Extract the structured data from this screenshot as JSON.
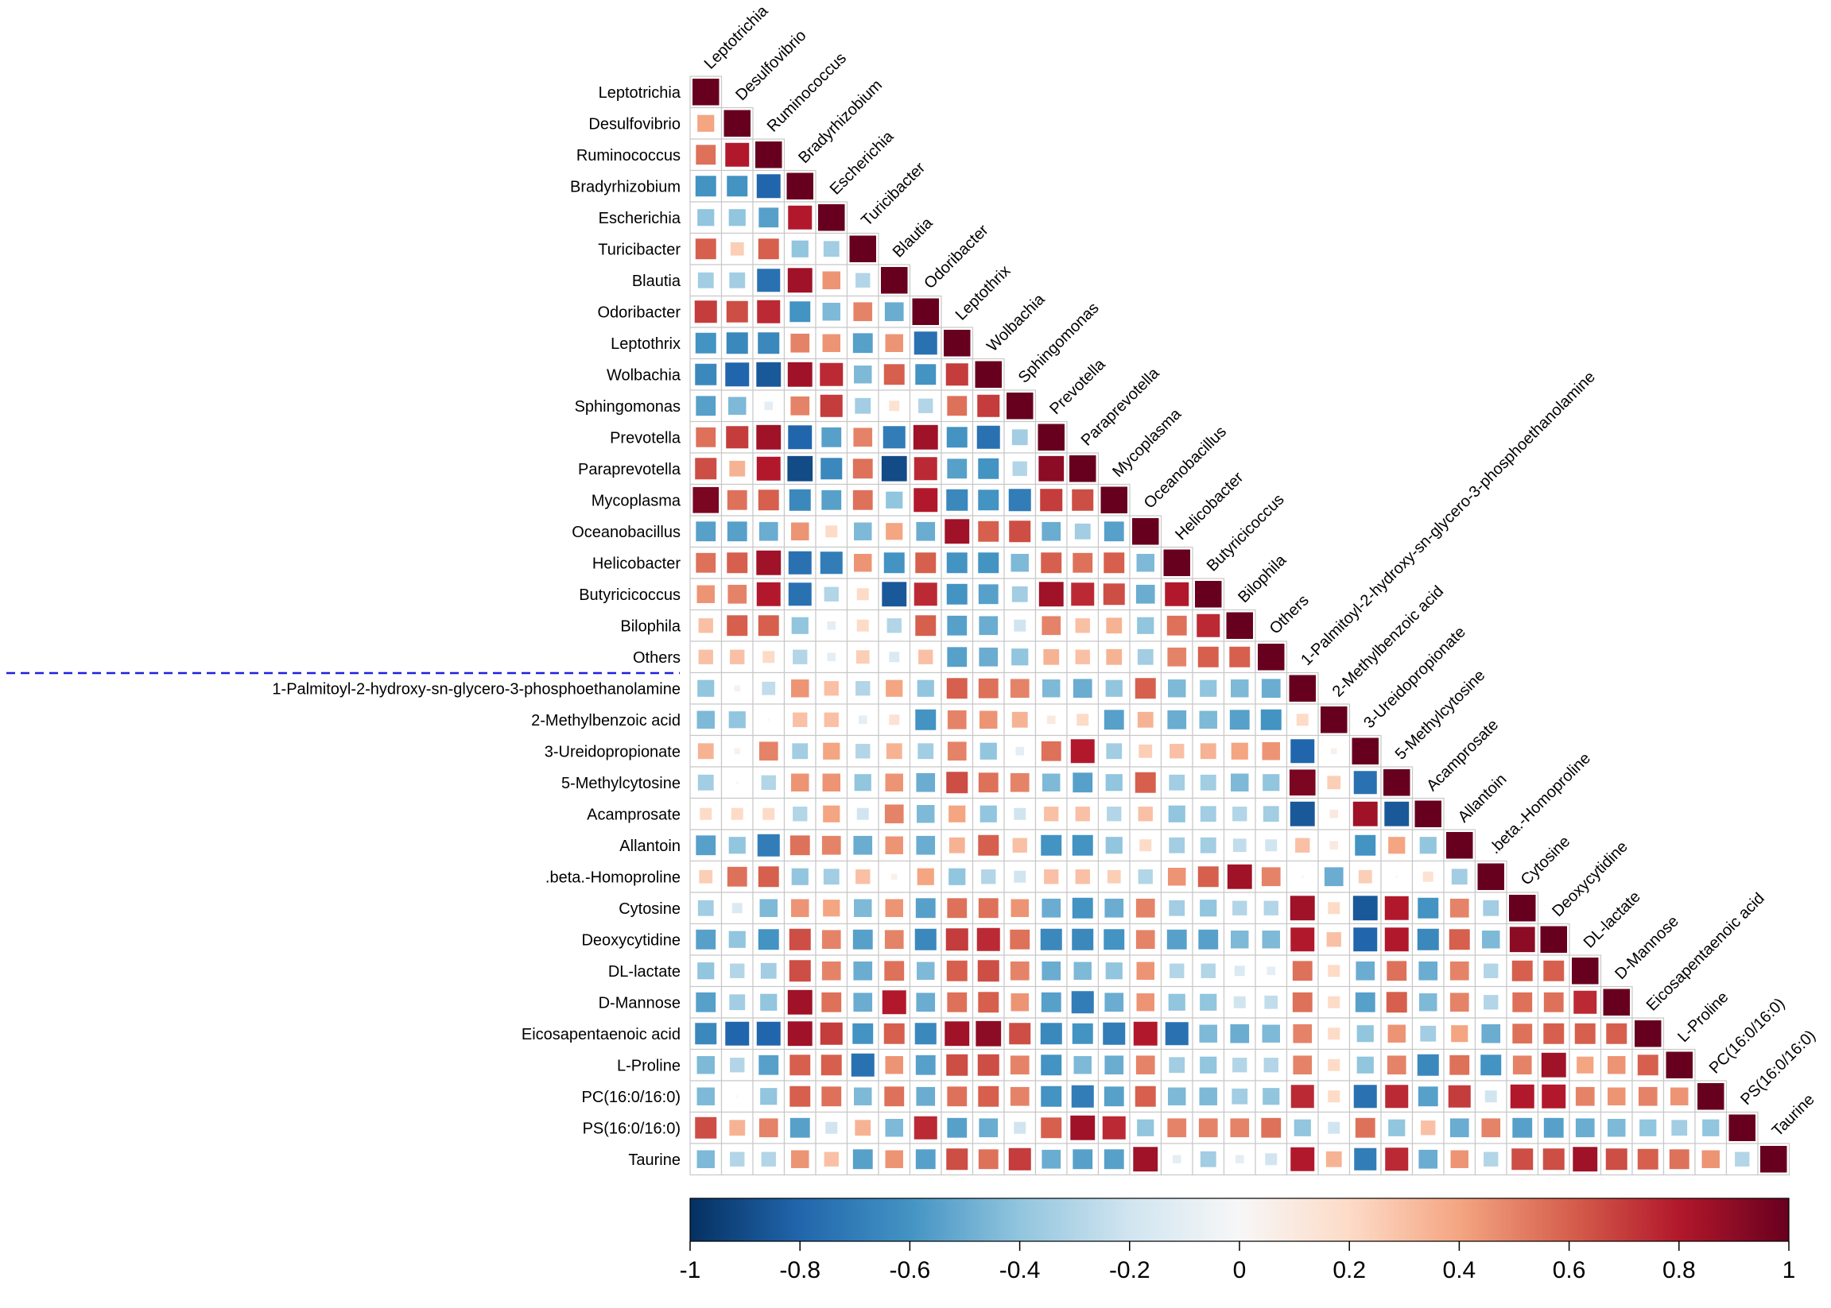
{
  "chart_data": {
    "type": "heatmap",
    "subtype": "lower-triangular correlation matrix",
    "title": "",
    "labels": [
      "Leptotrichia",
      "Desulfovibrio",
      "Ruminococcus",
      "Bradyrhizobium",
      "Escherichia",
      "Turicibacter",
      "Blautia",
      "Odoribacter",
      "Leptothrix",
      "Wolbachia",
      "Sphingomonas",
      "Prevotella",
      "Paraprevotella",
      "Mycoplasma",
      "Oceanobacillus",
      "Helicobacter",
      "Butyricicoccus",
      "Bilophila",
      "Others",
      "1-Palmitoyl-2-hydroxy-sn-glycero-3-phosphoethanolamine",
      "2-Methylbenzoic acid",
      "3-Ureidopropionate",
      "5-Methylcytosine",
      "Acamprosate",
      "Allantoin",
      ".beta.-Homoproline",
      "Cytosine",
      "Deoxycytidine",
      "DL-lactate",
      "D-Mannose",
      "Eicosapentaenoic acid",
      "L-Proline",
      "PC(16:0/16:0)",
      "PS(16:0/16:0)",
      "Taurine"
    ],
    "group_separator_after": "Others",
    "colorbar": {
      "range": [
        -1,
        1
      ],
      "ticks": [
        "-1",
        "-0.8",
        "-0.6",
        "-0.4",
        "-0.2",
        "0",
        "0.2",
        "0.4",
        "0.6",
        "0.8",
        "1"
      ],
      "stops": [
        {
          "v": -1.0,
          "c": "#053061"
        },
        {
          "v": -0.8,
          "c": "#2166ac"
        },
        {
          "v": -0.6,
          "c": "#4393c3"
        },
        {
          "v": -0.4,
          "c": "#92c5de"
        },
        {
          "v": -0.2,
          "c": "#d1e5f0"
        },
        {
          "v": 0.0,
          "c": "#f7f7f7"
        },
        {
          "v": 0.2,
          "c": "#fddbc7"
        },
        {
          "v": 0.4,
          "c": "#f4a582"
        },
        {
          "v": 0.6,
          "c": "#d6604d"
        },
        {
          "v": 0.8,
          "c": "#b2182b"
        },
        {
          "v": 1.0,
          "c": "#67001f"
        }
      ]
    },
    "correlations": [
      [
        1
      ],
      [
        0.4,
        1
      ],
      [
        0.55,
        0.8,
        1
      ],
      [
        -0.6,
        -0.6,
        -0.8,
        1
      ],
      [
        -0.4,
        -0.4,
        -0.55,
        0.8,
        1
      ],
      [
        0.6,
        0.25,
        0.6,
        -0.4,
        -0.35,
        1
      ],
      [
        -0.35,
        -0.35,
        -0.75,
        0.85,
        0.45,
        -0.3,
        1
      ],
      [
        0.7,
        0.65,
        0.75,
        -0.6,
        -0.45,
        0.5,
        -0.5,
        1
      ],
      [
        -0.6,
        -0.65,
        -0.65,
        0.5,
        0.45,
        -0.55,
        0.45,
        -0.75,
        1
      ],
      [
        -0.65,
        -0.8,
        -0.85,
        0.85,
        0.75,
        -0.45,
        0.6,
        -0.6,
        0.7,
        1
      ],
      [
        -0.55,
        -0.45,
        -0.1,
        0.5,
        0.7,
        -0.35,
        0.15,
        -0.3,
        0.55,
        0.7,
        1
      ],
      [
        0.55,
        0.7,
        0.85,
        -0.8,
        -0.55,
        0.5,
        -0.7,
        0.85,
        -0.6,
        -0.75,
        -0.35,
        1
      ],
      [
        0.65,
        0.35,
        0.8,
        -0.9,
        -0.65,
        0.55,
        -0.9,
        0.75,
        -0.55,
        -0.6,
        -0.3,
        0.9,
        1
      ],
      [
        0.95,
        0.55,
        0.6,
        -0.65,
        -0.55,
        0.55,
        -0.4,
        0.8,
        -0.65,
        -0.6,
        -0.7,
        0.7,
        0.65,
        1
      ],
      [
        -0.55,
        -0.55,
        -0.5,
        0.45,
        0.2,
        -0.45,
        0.4,
        -0.5,
        0.85,
        0.6,
        0.65,
        -0.5,
        -0.35,
        -0.55,
        1
      ],
      [
        0.55,
        0.6,
        0.85,
        -0.75,
        -0.7,
        0.45,
        -0.6,
        0.6,
        -0.6,
        -0.6,
        -0.45,
        0.6,
        0.55,
        0.6,
        -0.45,
        1
      ],
      [
        0.45,
        0.5,
        0.8,
        -0.75,
        -0.3,
        0.2,
        -0.85,
        0.75,
        -0.6,
        -0.55,
        -0.35,
        0.85,
        0.75,
        0.65,
        -0.5,
        0.8,
        1
      ],
      [
        0.3,
        0.6,
        0.6,
        -0.4,
        -0.1,
        0.2,
        -0.3,
        0.6,
        -0.55,
        -0.5,
        -0.2,
        0.5,
        0.3,
        0.35,
        -0.4,
        0.55,
        0.75,
        1
      ],
      [
        0.3,
        0.3,
        0.2,
        -0.3,
        -0.1,
        0.25,
        -0.15,
        0.3,
        -0.55,
        -0.5,
        -0.4,
        0.35,
        0.3,
        0.35,
        -0.35,
        0.5,
        0.6,
        0.6,
        1
      ],
      [
        -0.4,
        0.05,
        -0.25,
        0.45,
        0.3,
        -0.3,
        0.4,
        -0.4,
        0.6,
        0.55,
        0.5,
        -0.45,
        -0.5,
        -0.4,
        0.6,
        -0.45,
        -0.4,
        -0.45,
        -0.5,
        1
      ],
      [
        -0.45,
        -0.4,
        0.0,
        0.3,
        0.3,
        -0.1,
        0.15,
        -0.6,
        0.5,
        0.45,
        0.35,
        0.1,
        0.2,
        -0.55,
        0.35,
        -0.5,
        -0.45,
        -0.55,
        -0.6,
        0.2,
        1
      ],
      [
        0.35,
        0.05,
        0.5,
        -0.35,
        0.4,
        -0.3,
        0.35,
        -0.35,
        0.5,
        -0.4,
        -0.1,
        0.55,
        0.8,
        -0.35,
        0.25,
        0.3,
        0.35,
        0.4,
        0.45,
        -0.8,
        0.05,
        1
      ],
      [
        -0.35,
        0.0,
        -0.3,
        0.45,
        0.45,
        -0.4,
        0.45,
        -0.5,
        0.65,
        0.55,
        0.5,
        -0.45,
        -0.55,
        -0.4,
        0.6,
        -0.35,
        -0.35,
        -0.45,
        -0.4,
        0.95,
        0.25,
        -0.75,
        1
      ],
      [
        0.2,
        0.2,
        0.2,
        -0.3,
        0.4,
        -0.2,
        0.5,
        -0.45,
        0.4,
        -0.4,
        -0.2,
        0.3,
        0.3,
        -0.3,
        0.3,
        -0.4,
        -0.35,
        -0.3,
        -0.35,
        -0.85,
        0.1,
        0.85,
        -0.85,
        1
      ],
      [
        -0.55,
        -0.4,
        -0.7,
        0.55,
        0.5,
        -0.5,
        0.45,
        -0.5,
        0.35,
        0.6,
        0.3,
        -0.6,
        -0.6,
        -0.4,
        0.2,
        -0.35,
        -0.35,
        -0.25,
        -0.2,
        0.3,
        0.1,
        -0.6,
        0.4,
        -0.4,
        1
      ],
      [
        0.25,
        0.55,
        0.6,
        -0.4,
        -0.35,
        0.3,
        0.05,
        0.4,
        -0.4,
        -0.3,
        -0.2,
        0.3,
        0.3,
        0.25,
        -0.3,
        0.45,
        0.6,
        0.85,
        0.5,
        0.0,
        -0.5,
        0.25,
        0.0,
        0.15,
        -0.35,
        1
      ],
      [
        -0.35,
        -0.15,
        -0.45,
        0.45,
        0.4,
        -0.45,
        0.45,
        -0.55,
        0.55,
        0.55,
        0.45,
        -0.5,
        -0.6,
        -0.5,
        0.5,
        -0.35,
        -0.4,
        -0.3,
        -0.3,
        0.85,
        0.2,
        -0.85,
        0.8,
        -0.6,
        0.5,
        -0.35,
        1
      ],
      [
        -0.55,
        -0.4,
        -0.6,
        0.65,
        0.5,
        -0.55,
        0.5,
        -0.65,
        0.7,
        0.75,
        0.55,
        -0.65,
        -0.65,
        -0.6,
        0.5,
        -0.55,
        -0.55,
        -0.45,
        -0.45,
        0.8,
        0.3,
        -0.8,
        0.8,
        -0.65,
        0.6,
        -0.45,
        0.9,
        1
      ],
      [
        -0.4,
        -0.3,
        -0.35,
        0.65,
        0.5,
        -0.5,
        0.55,
        -0.45,
        0.6,
        0.65,
        0.5,
        -0.5,
        -0.45,
        -0.4,
        0.45,
        -0.3,
        -0.3,
        -0.15,
        -0.1,
        0.55,
        0.2,
        -0.5,
        0.55,
        -0.5,
        0.5,
        -0.3,
        0.6,
        0.6,
        1
      ],
      [
        -0.55,
        -0.35,
        -0.4,
        0.85,
        0.55,
        -0.5,
        0.8,
        -0.5,
        0.55,
        0.6,
        0.45,
        -0.55,
        -0.7,
        -0.5,
        0.45,
        -0.4,
        -0.4,
        -0.2,
        -0.25,
        0.55,
        0.2,
        -0.55,
        0.6,
        -0.45,
        0.5,
        -0.3,
        0.55,
        0.55,
        0.75,
        1
      ],
      [
        -0.65,
        -0.8,
        -0.8,
        0.85,
        0.7,
        -0.6,
        0.6,
        -0.65,
        0.85,
        0.9,
        0.65,
        -0.65,
        -0.6,
        -0.7,
        0.8,
        -0.75,
        -0.45,
        -0.5,
        -0.45,
        0.5,
        0.2,
        -0.4,
        0.45,
        -0.35,
        0.4,
        -0.5,
        0.55,
        0.6,
        0.6,
        0.6,
        1
      ],
      [
        -0.45,
        -0.3,
        -0.55,
        0.6,
        0.6,
        -0.75,
        0.45,
        -0.55,
        0.65,
        0.65,
        0.5,
        -0.6,
        -0.45,
        -0.5,
        0.5,
        -0.35,
        -0.4,
        -0.3,
        -0.3,
        0.5,
        0.2,
        -0.4,
        0.5,
        -0.65,
        0.55,
        -0.6,
        0.5,
        0.85,
        0.4,
        0.45,
        0.6,
        1
      ],
      [
        -0.45,
        0.0,
        -0.4,
        0.6,
        0.55,
        -0.45,
        0.55,
        -0.5,
        0.55,
        0.6,
        0.5,
        -0.6,
        -0.7,
        -0.55,
        0.6,
        -0.45,
        -0.45,
        -0.35,
        -0.4,
        0.75,
        0.2,
        -0.75,
        0.75,
        -0.55,
        0.7,
        -0.2,
        0.8,
        0.8,
        0.5,
        0.45,
        0.5,
        0.45,
        1
      ],
      [
        0.65,
        0.35,
        0.5,
        -0.55,
        -0.2,
        0.35,
        -0.45,
        0.75,
        -0.55,
        -0.5,
        -0.2,
        0.6,
        0.85,
        0.75,
        -0.4,
        0.5,
        0.5,
        0.5,
        0.55,
        -0.4,
        -0.2,
        0.55,
        -0.4,
        0.3,
        -0.5,
        0.5,
        -0.55,
        -0.55,
        -0.5,
        -0.45,
        -0.4,
        -0.35,
        -0.4,
        1
      ],
      [
        -0.45,
        -0.3,
        -0.3,
        0.45,
        0.3,
        -0.55,
        0.45,
        -0.55,
        0.65,
        0.55,
        0.7,
        -0.5,
        -0.55,
        -0.55,
        0.85,
        -0.1,
        -0.35,
        -0.1,
        -0.2,
        0.8,
        0.35,
        -0.7,
        0.75,
        -0.5,
        0.45,
        -0.3,
        0.65,
        0.65,
        0.85,
        0.65,
        0.6,
        0.55,
        0.45,
        -0.3,
        1
      ]
    ]
  }
}
